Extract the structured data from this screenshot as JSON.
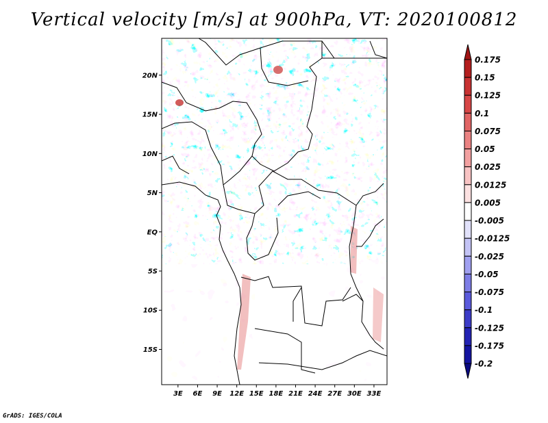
{
  "title": "Vertical velocity [m/s] at 900hPa, VT: 2020100812",
  "credit": "GrADS: IGES/COLA",
  "map": {
    "lat_labels": [
      "20N",
      "15N",
      "10N",
      "5N",
      "EQ",
      "5S",
      "10S",
      "15S"
    ],
    "lat_values": [
      20,
      15,
      10,
      5,
      0,
      -5,
      -10,
      -15
    ],
    "lon_labels": [
      "3E",
      "6E",
      "9E",
      "12E",
      "15E",
      "18E",
      "21E",
      "24E",
      "27E",
      "30E",
      "33E"
    ],
    "lon_values": [
      3,
      6,
      9,
      12,
      15,
      18,
      21,
      24,
      27,
      30,
      33
    ],
    "lon_range": [
      0.5,
      35
    ],
    "lat_range": [
      -19.5,
      24.7
    ]
  },
  "colorbar": {
    "labels": [
      "0.175",
      "0.15",
      "0.125",
      "0.1",
      "0.075",
      "0.05",
      "0.025",
      "0.0125",
      "0.005",
      "-0.005",
      "-0.0125",
      "-0.025",
      "-0.05",
      "-0.075",
      "-0.1",
      "-0.125",
      "-0.175",
      "-0.2"
    ],
    "colors": [
      "#a01414",
      "#b41e1e",
      "#c83232",
      "#d74646",
      "#e16464",
      "#ea8282",
      "#f2a0a0",
      "#f8c3c3",
      "#fce1e1",
      "#ffffff",
      "#e1e1fa",
      "#c3c3f5",
      "#a0a0f0",
      "#7d7de6",
      "#5a5adc",
      "#3c3cc8",
      "#2323b4",
      "#1414a0",
      "#0a0a82"
    ]
  }
}
